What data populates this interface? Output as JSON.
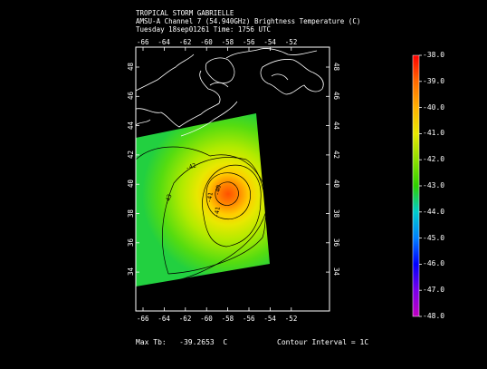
{
  "header": {
    "line1": "TROPICAL STORM GABRIELLE",
    "line2": "AMSU-A Channel 7 (54.940GHz) Brightness Temperature (C)",
    "line3": "Tuesday 18sep01261 Time: 1756 UTC"
  },
  "map": {
    "lon_ticks": [
      "-66",
      "-64",
      "-62",
      "-60",
      "-58",
      "-56",
      "-54",
      "-52"
    ],
    "lat_ticks": [
      "48",
      "46",
      "44",
      "42",
      "40",
      "38",
      "36",
      "34"
    ],
    "contour_labels": [
      "-43",
      "-42",
      "-41",
      "-40",
      "-41"
    ],
    "center": {
      "lon": -58.5,
      "lat": 40.3
    }
  },
  "colorbar": {
    "ticks": [
      "-38.0",
      "-39.0",
      "-40.0",
      "-41.0",
      "-42.0",
      "-43.0",
      "-44.0",
      "-45.0",
      "-46.0",
      "-47.0",
      "-48.0"
    ],
    "colors": [
      "#ff0000",
      "#ff6a00",
      "#ffb000",
      "#e8e800",
      "#8ee000",
      "#2ed100",
      "#00cccc",
      "#0080ff",
      "#0000ff",
      "#7a00e8",
      "#c000c0"
    ]
  },
  "footer": {
    "max_tb": "Max Tb:   -39.2653  C",
    "contour_interval": "Contour Interval = 1C"
  }
}
